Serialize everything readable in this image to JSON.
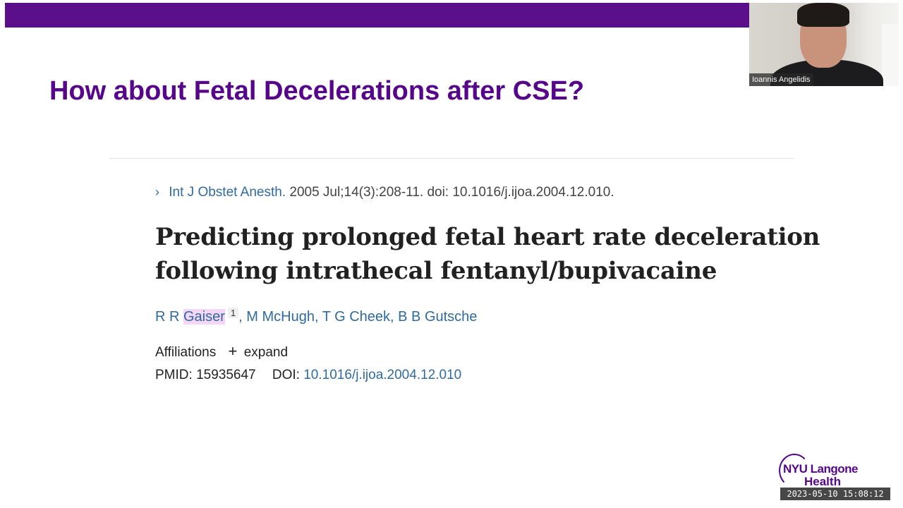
{
  "slide": {
    "title": "How about Fetal Decelerations after CSE?"
  },
  "article": {
    "journal": "Int J Obstet Anesth.",
    "citation": "2005 Jul;14(3):208-11. doi: 10.1016/j.ijoa.2004.12.010.",
    "title": "Predicting prolonged fetal heart rate deceleration following intrathecal fentanyl/bupivacaine",
    "authors": {
      "first_prefix": "R R ",
      "first_highlight": "Gaiser",
      "first_sup": "1",
      "rest": ", M McHugh, T G Cheek, B B Gutsche"
    },
    "affiliations_label": "Affiliations",
    "expand_label": "expand",
    "pmid_label": "PMID:",
    "pmid": "15935647",
    "doi_label": "DOI:",
    "doi": "10.1016/j.ijoa.2004.12.010"
  },
  "video": {
    "participant_name": "Ioannis Angelidis"
  },
  "logo": {
    "line1": "NYU Langone",
    "line2": "Health"
  },
  "timestamp": "2023-05-10 15:08:12",
  "colors": {
    "brand_purple": "#57068c",
    "link_blue": "#2f6aa3",
    "highlight": "#f4d6f7"
  }
}
